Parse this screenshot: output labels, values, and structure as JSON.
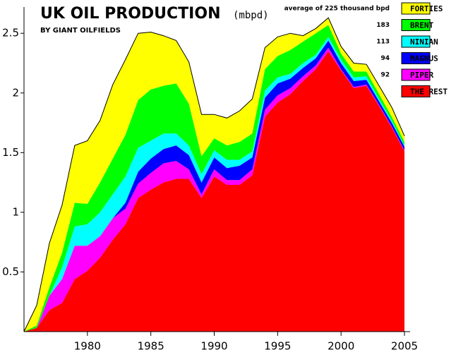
{
  "chart_data": {
    "type": "stacked_area",
    "title": "UK OIL PRODUCTION",
    "units": "(mbpd)",
    "subtitle": "BY GIANT OILFIELDS",
    "x": [
      1975,
      1976,
      1977,
      1978,
      1979,
      1980,
      1981,
      1982,
      1983,
      1984,
      1985,
      1986,
      1987,
      1988,
      1989,
      1990,
      1991,
      1992,
      1993,
      1994,
      1995,
      1996,
      1997,
      1998,
      1999,
      2000,
      2001,
      2002,
      2003,
      2004,
      2005
    ],
    "xlim": [
      1975,
      2005
    ],
    "xticks": [
      1980,
      1985,
      1990,
      1995,
      2000,
      2005
    ],
    "ylim": [
      0,
      2.72
    ],
    "yticks": [
      0.5,
      1,
      1.5,
      2,
      2.5
    ],
    "series": [
      {
        "name": "FORTIES",
        "color": "#ffff00",
        "legend_note": "average of 225 thousand bpd",
        "values": [
          0,
          0.17,
          0.37,
          0.4,
          0.48,
          0.53,
          0.52,
          0.62,
          0.63,
          0.56,
          0.48,
          0.42,
          0.36,
          0.35,
          0.35,
          0.2,
          0.23,
          0.26,
          0.29,
          0.18,
          0.16,
          0.14,
          0.05,
          0.04,
          0.06,
          0.06,
          0.07,
          0.06,
          0.07,
          0.08,
          0.05
        ]
      },
      {
        "name": "BRENT",
        "color": "#00ff00",
        "legend_note": "183",
        "values": [
          0,
          0.02,
          0.07,
          0.12,
          0.2,
          0.17,
          0.25,
          0.3,
          0.35,
          0.4,
          0.43,
          0.4,
          0.42,
          0.35,
          0.15,
          0.1,
          0.12,
          0.15,
          0.15,
          0.18,
          0.18,
          0.2,
          0.18,
          0.18,
          0.1,
          0.05,
          0.05,
          0.04,
          0.04,
          0.03,
          0.03
        ]
      },
      {
        "name": "NINIAN",
        "color": "#00ffff",
        "legend_note": "113",
        "values": [
          0,
          0,
          0,
          0.1,
          0.16,
          0.18,
          0.2,
          0.2,
          0.22,
          0.2,
          0.15,
          0.13,
          0.1,
          0.08,
          0.07,
          0.06,
          0.07,
          0.05,
          0.05,
          0.06,
          0.05,
          0.04,
          0.04,
          0.03,
          0.03,
          0.03,
          0.03,
          0.03,
          0.02,
          0.02,
          0.01
        ]
      },
      {
        "name": "MAGNUS",
        "color": "#0000ff",
        "legend_note": "94",
        "values": [
          0,
          0,
          0,
          0,
          0,
          0,
          0,
          0,
          0.05,
          0.1,
          0.12,
          0.12,
          0.13,
          0.12,
          0.1,
          0.1,
          0.1,
          0.12,
          0.1,
          0.1,
          0.1,
          0.08,
          0.07,
          0.06,
          0.06,
          0.05,
          0.05,
          0.04,
          0.03,
          0.03,
          0.03
        ]
      },
      {
        "name": "PIPER",
        "color": "#ff00ff",
        "legend_note": "92",
        "values": [
          0,
          0,
          0.12,
          0.2,
          0.28,
          0.21,
          0.18,
          0.18,
          0.13,
          0.12,
          0.14,
          0.16,
          0.15,
          0.08,
          0.03,
          0.06,
          0.04,
          0.04,
          0.05,
          0.06,
          0.06,
          0.05,
          0.04,
          0.03,
          0.03,
          0.01,
          0.01,
          0.01,
          0.01,
          0.01,
          0.01
        ]
      },
      {
        "name": "THE REST",
        "color": "#ff0000",
        "values": [
          0,
          0.03,
          0.18,
          0.24,
          0.44,
          0.51,
          0.62,
          0.77,
          0.9,
          1.12,
          1.19,
          1.25,
          1.28,
          1.28,
          1.12,
          1.3,
          1.23,
          1.23,
          1.31,
          1.8,
          1.92,
          1.99,
          2.1,
          2.2,
          2.35,
          2.19,
          2.04,
          2.06,
          1.89,
          1.71,
          1.51
        ]
      }
    ]
  }
}
